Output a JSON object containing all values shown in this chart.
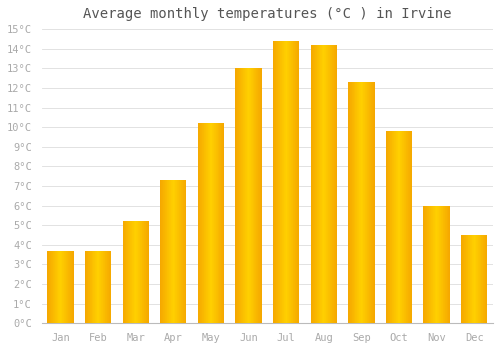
{
  "title": "Average monthly temperatures (°C ) in Irvine",
  "months": [
    "Jan",
    "Feb",
    "Mar",
    "Apr",
    "May",
    "Jun",
    "Jul",
    "Aug",
    "Sep",
    "Oct",
    "Nov",
    "Dec"
  ],
  "values": [
    3.7,
    3.7,
    5.2,
    7.3,
    10.2,
    13.0,
    14.4,
    14.2,
    12.3,
    9.8,
    6.0,
    4.5
  ],
  "bar_color_left": "#F5A800",
  "bar_color_center": "#FFD000",
  "bar_color_right": "#F5A800",
  "ylim": [
    0,
    15
  ],
  "yticks": [
    0,
    1,
    2,
    3,
    4,
    5,
    6,
    7,
    8,
    9,
    10,
    11,
    12,
    13,
    14,
    15
  ],
  "background_color": "#FFFFFF",
  "grid_color": "#DDDDDD",
  "title_fontsize": 10,
  "tick_fontsize": 7.5,
  "tick_color": "#AAAAAA",
  "title_color": "#555555",
  "font_family": "monospace"
}
